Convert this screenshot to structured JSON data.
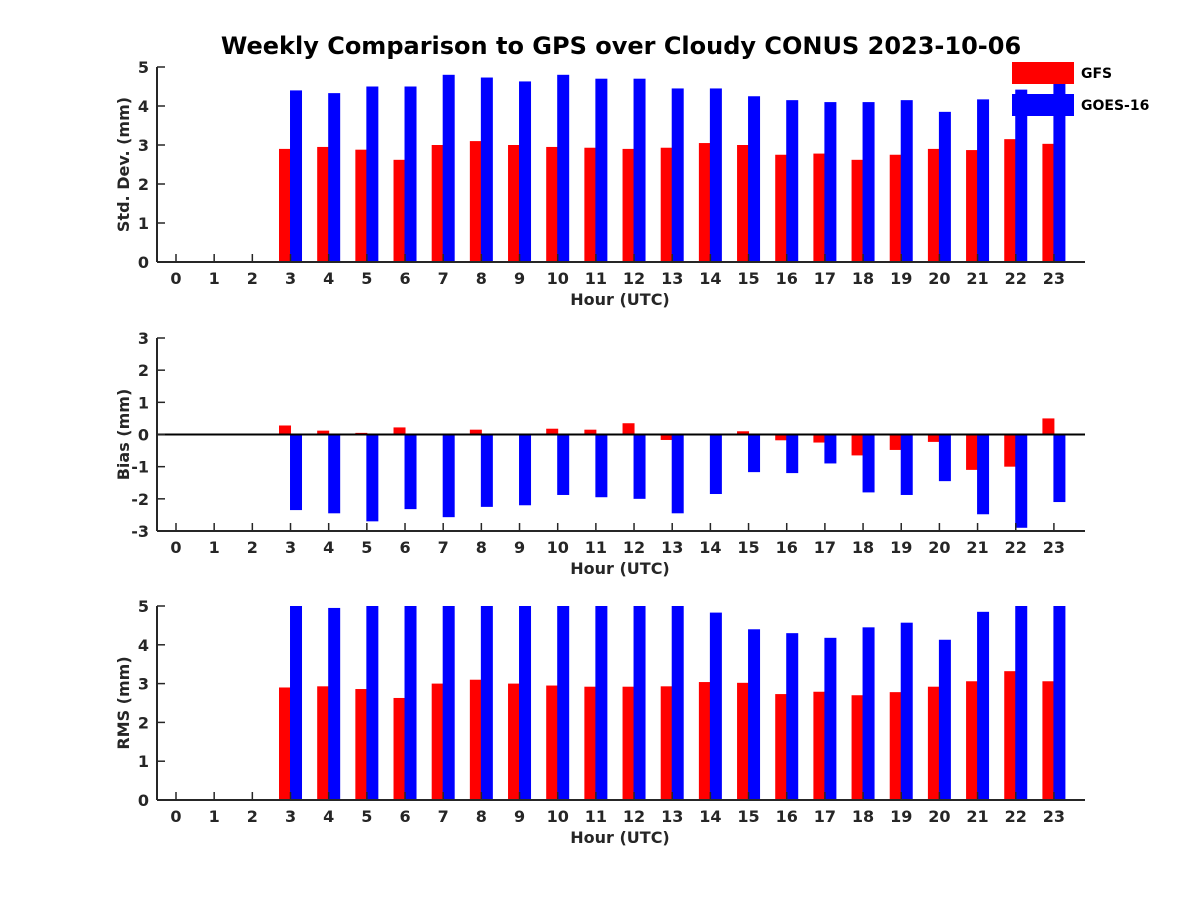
{
  "title": "Weekly Comparison to GPS over Cloudy CONUS 2023-10-06",
  "colors": {
    "GFS": "#ff0000",
    "GOES-16": "#0000ff"
  },
  "legend": {
    "placement": "top-right",
    "items": [
      "GFS",
      "GOES-16"
    ]
  },
  "chart_data": [
    {
      "type": "bar",
      "xlabel": "Hour (UTC)",
      "ylabel": "Std. Dev. (mm)",
      "ylim": [
        0,
        5
      ],
      "yticks": [
        0,
        1,
        2,
        3,
        4,
        5
      ],
      "categories": [
        "0",
        "1",
        "2",
        "3",
        "4",
        "5",
        "6",
        "7",
        "8",
        "9",
        "10",
        "11",
        "12",
        "13",
        "14",
        "15",
        "16",
        "17",
        "18",
        "19",
        "20",
        "21",
        "22",
        "23"
      ],
      "series": [
        {
          "name": "GFS",
          "values": [
            null,
            null,
            null,
            2.9,
            2.95,
            2.88,
            2.62,
            3.0,
            3.1,
            3.0,
            2.95,
            2.93,
            2.9,
            2.93,
            3.05,
            3.0,
            2.75,
            2.78,
            2.62,
            2.75,
            2.9,
            2.87,
            3.15,
            3.03
          ]
        },
        {
          "name": "GOES-16",
          "values": [
            null,
            null,
            null,
            4.4,
            4.33,
            4.5,
            4.5,
            4.8,
            4.73,
            4.63,
            4.8,
            4.7,
            4.7,
            4.45,
            4.45,
            4.25,
            4.15,
            4.1,
            4.1,
            4.15,
            3.85,
            4.17,
            4.42,
            4.6
          ]
        }
      ]
    },
    {
      "type": "bar",
      "xlabel": "Hour (UTC)",
      "ylabel": "Bias (mm)",
      "ylim": [
        -3,
        3
      ],
      "yticks": [
        -3,
        -2,
        -1,
        0,
        1,
        2,
        3
      ],
      "categories": [
        "0",
        "1",
        "2",
        "3",
        "4",
        "5",
        "6",
        "7",
        "8",
        "9",
        "10",
        "11",
        "12",
        "13",
        "14",
        "15",
        "16",
        "17",
        "18",
        "19",
        "20",
        "21",
        "22",
        "23"
      ],
      "series": [
        {
          "name": "GFS",
          "values": [
            null,
            null,
            null,
            0.28,
            0.12,
            0.05,
            0.22,
            -0.03,
            0.15,
            0.03,
            0.18,
            0.15,
            0.35,
            -0.17,
            -0.03,
            0.1,
            -0.18,
            -0.25,
            -0.65,
            -0.48,
            -0.23,
            -1.1,
            -1.0,
            0.5
          ]
        },
        {
          "name": "GOES-16",
          "values": [
            null,
            null,
            null,
            -2.35,
            -2.45,
            -2.7,
            -2.32,
            -2.57,
            -2.25,
            -2.2,
            -1.88,
            -1.95,
            -2.0,
            -2.45,
            -1.85,
            -1.17,
            -1.2,
            -0.9,
            -1.8,
            -1.88,
            -1.45,
            -2.48,
            -2.9,
            -2.1
          ]
        }
      ]
    },
    {
      "type": "bar",
      "xlabel": "Hour (UTC)",
      "ylabel": "RMS (mm)",
      "ylim": [
        0,
        5
      ],
      "yticks": [
        0,
        1,
        2,
        3,
        4,
        5
      ],
      "categories": [
        "0",
        "1",
        "2",
        "3",
        "4",
        "5",
        "6",
        "7",
        "8",
        "9",
        "10",
        "11",
        "12",
        "13",
        "14",
        "15",
        "16",
        "17",
        "18",
        "19",
        "20",
        "21",
        "22",
        "23"
      ],
      "series": [
        {
          "name": "GFS",
          "values": [
            null,
            null,
            null,
            2.9,
            2.93,
            2.86,
            2.63,
            3.0,
            3.1,
            3.0,
            2.95,
            2.92,
            2.92,
            2.93,
            3.04,
            3.02,
            2.73,
            2.79,
            2.7,
            2.78,
            2.92,
            3.06,
            3.32,
            3.06
          ]
        },
        {
          "name": "GOES-16",
          "values": [
            null,
            null,
            null,
            5.0,
            4.95,
            5.0,
            5.0,
            5.0,
            5.0,
            5.0,
            5.0,
            5.0,
            5.0,
            5.0,
            4.83,
            4.4,
            4.3,
            4.18,
            4.45,
            4.57,
            4.13,
            4.85,
            5.0,
            5.0
          ]
        }
      ]
    }
  ]
}
